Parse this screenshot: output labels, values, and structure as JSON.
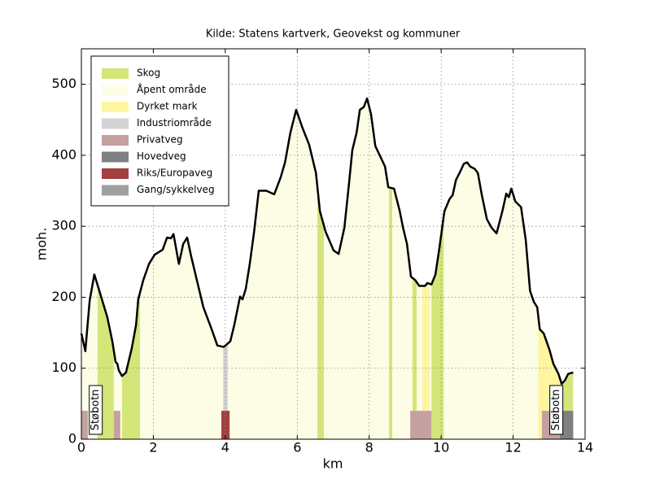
{
  "chart_data": {
    "type": "elevation-profile",
    "title": "Kilde: Statens kartverk, Geovekst og kommuner",
    "x_label": "km",
    "y_label": "moh.",
    "xlim": [
      0,
      14
    ],
    "ylim": [
      0,
      550
    ],
    "xticks": [
      0,
      2,
      4,
      6,
      8,
      10,
      12,
      14
    ],
    "yticks": [
      0,
      100,
      200,
      300,
      400,
      500
    ],
    "grid": true,
    "legend_position": "upper left",
    "elevation": {
      "color": "#000000",
      "x": [
        0,
        0.11,
        0.23,
        0.36,
        0.5,
        0.72,
        0.86,
        0.95,
        1.0,
        1.04,
        1.13,
        1.24,
        1.31,
        1.4,
        1.52,
        1.58,
        1.72,
        1.88,
        2.04,
        2.26,
        2.38,
        2.49,
        2.56,
        2.71,
        2.83,
        2.94,
        3.05,
        3.21,
        3.39,
        3.62,
        3.78,
        3.96,
        4.14,
        4.25,
        4.41,
        4.48,
        4.57,
        4.68,
        4.8,
        4.93,
        5.14,
        5.36,
        5.54,
        5.66,
        5.81,
        5.97,
        6.15,
        6.33,
        6.52,
        6.63,
        6.79,
        7.01,
        7.15,
        7.31,
        7.44,
        7.53,
        7.65,
        7.74,
        7.85,
        7.94,
        8.05,
        8.17,
        8.33,
        8.44,
        8.53,
        8.69,
        8.85,
        8.94,
        9.05,
        9.16,
        9.28,
        9.39,
        9.55,
        9.62,
        9.73,
        9.84,
        9.95,
        10.09,
        10.23,
        10.32,
        10.41,
        10.52,
        10.63,
        10.72,
        10.81,
        10.93,
        11.02,
        11.13,
        11.27,
        11.4,
        11.54,
        11.7,
        11.81,
        11.88,
        11.95,
        12.06,
        12.22,
        12.35,
        12.47,
        12.58,
        12.67,
        12.74,
        12.85,
        13.01,
        13.12,
        13.26,
        13.35,
        13.44,
        13.53,
        13.67
      ],
      "values": [
        149,
        124,
        195,
        232,
        209,
        172,
        138,
        109,
        106,
        97,
        89,
        94,
        109,
        128,
        161,
        197,
        224,
        247,
        260,
        267,
        284,
        283,
        289,
        247,
        275,
        284,
        258,
        224,
        186,
        155,
        132,
        130,
        138,
        161,
        201,
        197,
        212,
        247,
        292,
        350,
        350,
        345,
        369,
        390,
        432,
        464,
        438,
        415,
        375,
        321,
        292,
        266,
        261,
        298,
        361,
        407,
        432,
        464,
        468,
        480,
        458,
        413,
        396,
        384,
        355,
        353,
        321,
        298,
        275,
        229,
        224,
        216,
        216,
        220,
        218,
        232,
        269,
        321,
        338,
        344,
        365,
        376,
        388,
        390,
        384,
        381,
        375,
        344,
        310,
        298,
        290,
        321,
        346,
        341,
        353,
        335,
        327,
        281,
        209,
        193,
        186,
        155,
        149,
        126,
        106,
        92,
        78,
        83,
        92,
        94
      ]
    },
    "road_band_top": 40,
    "series": [
      {
        "name": "Skog",
        "color": "#d4e57a",
        "kind": "terrain",
        "spans": [
          [
            0.45,
            0.9
          ],
          [
            1.13,
            1.63
          ],
          [
            6.56,
            6.74
          ],
          [
            8.55,
            8.64
          ],
          [
            9.2,
            9.32
          ],
          [
            9.73,
            10.07
          ],
          [
            13.3,
            13.67
          ]
        ]
      },
      {
        "name": "Åpent område",
        "color": "#fdfde6",
        "kind": "terrain",
        "spans": []
      },
      {
        "name": "Dyrket mark",
        "color": "#fdf5a0",
        "kind": "terrain",
        "spans": [
          [
            12.7,
            13.3
          ],
          [
            9.48,
            9.68
          ]
        ]
      },
      {
        "name": "Industriområde",
        "color": "#d3d3d3",
        "kind": "terrain",
        "spans": [
          [
            3.94,
            4.07
          ]
        ]
      },
      {
        "name": "Privatveg",
        "color": "#c4a09f",
        "kind": "road",
        "spans": [
          [
            0,
            0.18
          ],
          [
            0.9,
            1.08
          ],
          [
            9.14,
            9.73
          ],
          [
            12.8,
            13.3
          ]
        ]
      },
      {
        "name": "Hovedveg",
        "color": "#808080",
        "kind": "road",
        "spans": [
          [
            13.3,
            13.67
          ]
        ]
      },
      {
        "name": "Riks/Europaveg",
        "color": "#a33f3f",
        "kind": "road",
        "spans": [
          [
            3.89,
            4.12
          ]
        ]
      },
      {
        "name": "Gang/sykkelveg",
        "color": "#a0a0a0",
        "kind": "road",
        "spans": []
      }
    ],
    "annotations": [
      {
        "text": "Støbotn",
        "x": 0.4
      },
      {
        "text": "Støbotn",
        "x": 13.2
      }
    ]
  }
}
